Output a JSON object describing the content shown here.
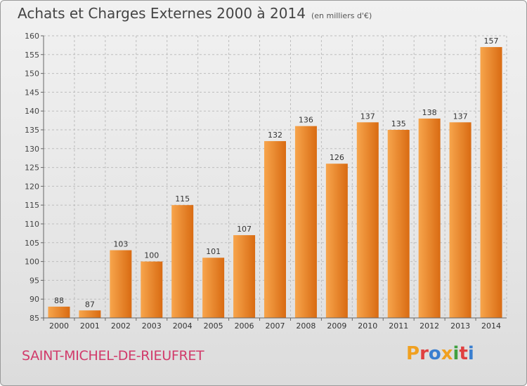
{
  "header": {
    "title": "Achats et Charges Externes 2000 à 2014",
    "unit": "(en milliers d'€)"
  },
  "footer": {
    "place": "SAINT-MICHEL-DE-RIEUFRET",
    "logo_text": "Proxiti",
    "logo_colors": [
      "#f0a020",
      "#e04040",
      "#3a7fd0",
      "#f0a020",
      "#40a040",
      "#e04040",
      "#3a7fd0"
    ]
  },
  "colors": {
    "bar_light": "#f7a54c",
    "bar_dark": "#d96b12",
    "grid": "#bdbdbd",
    "axis": "#666666"
  },
  "chart_data": {
    "type": "bar",
    "title": "Achats et Charges Externes 2000 à 2014",
    "subtitle": "(en milliers d'€)",
    "categories": [
      "2000",
      "2001",
      "2002",
      "2003",
      "2004",
      "2005",
      "2006",
      "2007",
      "2008",
      "2009",
      "2010",
      "2011",
      "2012",
      "2013",
      "2014"
    ],
    "values": [
      88,
      87,
      103,
      100,
      115,
      101,
      107,
      132,
      136,
      126,
      137,
      135,
      138,
      137,
      157
    ],
    "ylim": [
      85,
      160
    ],
    "yticks": [
      85,
      90,
      95,
      100,
      105,
      110,
      115,
      120,
      125,
      130,
      135,
      140,
      145,
      150,
      155,
      160
    ],
    "grid": true,
    "xlabel": "",
    "ylabel": ""
  }
}
